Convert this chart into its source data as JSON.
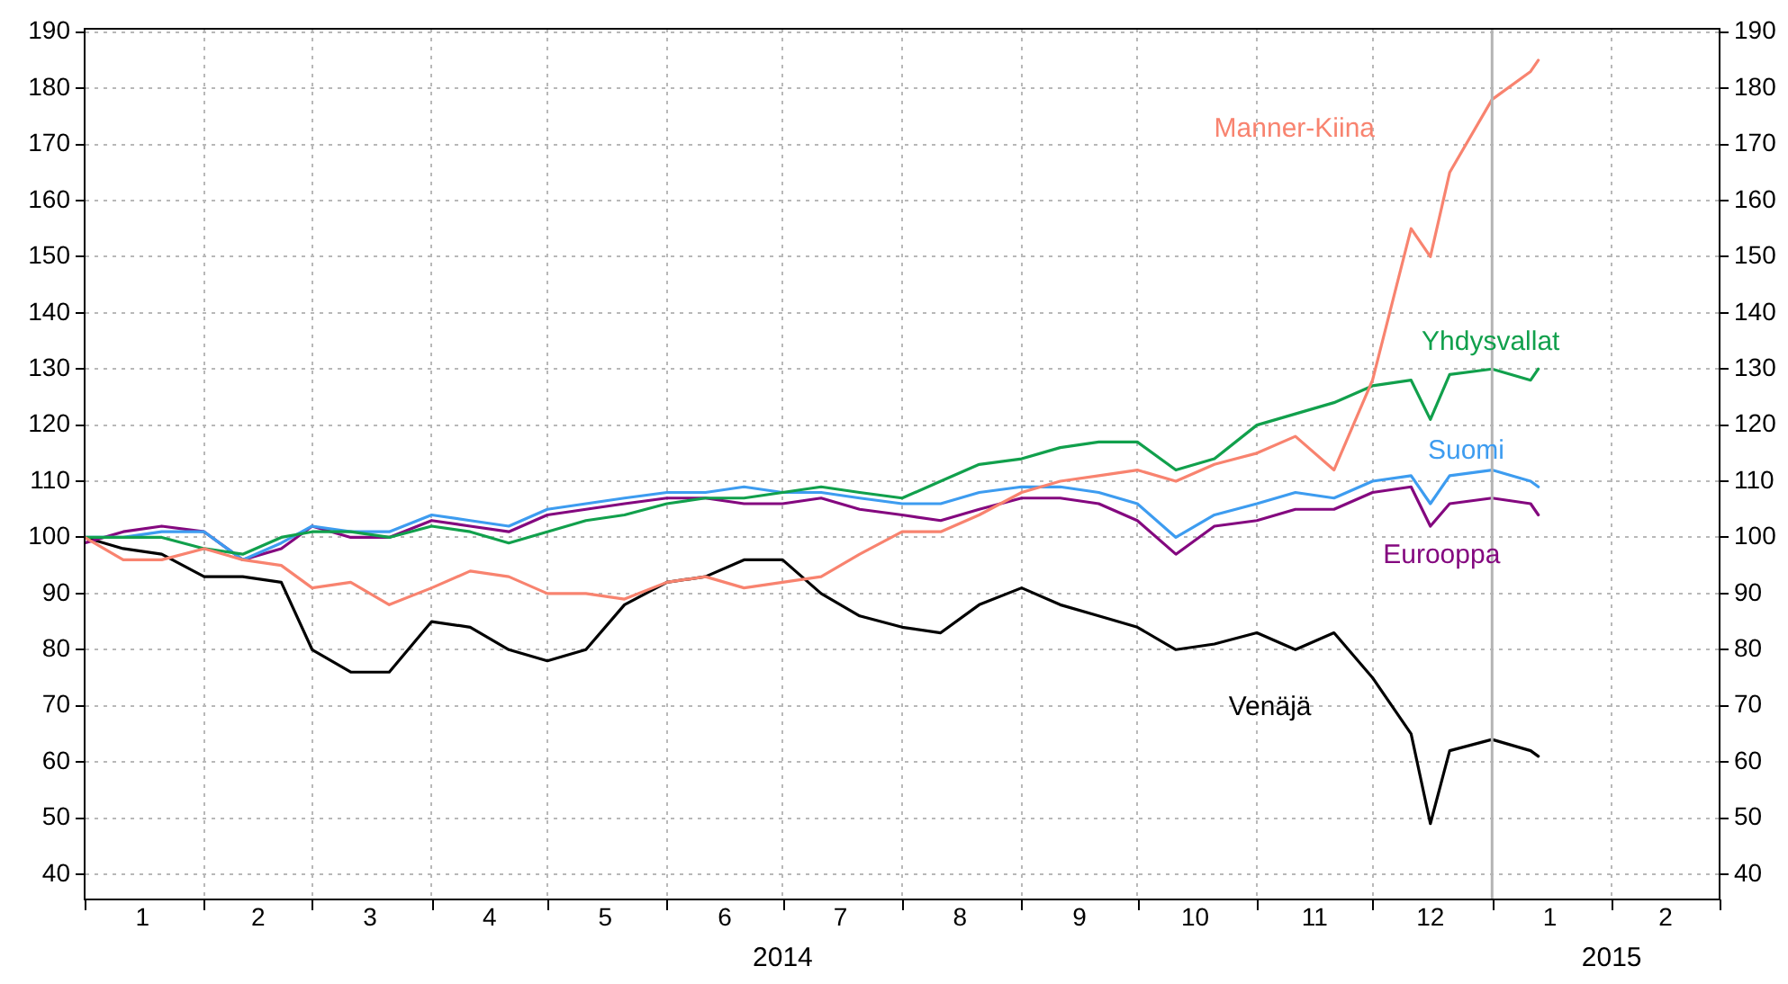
{
  "chart_data": {
    "type": "line",
    "x": [
      "2014-01-01",
      "2014-01-11",
      "2014-01-21",
      "2014-02-01",
      "2014-02-11",
      "2014-02-21",
      "2014-03-01",
      "2014-03-11",
      "2014-03-21",
      "2014-04-01",
      "2014-04-11",
      "2014-04-21",
      "2014-05-01",
      "2014-05-11",
      "2014-05-21",
      "2014-06-01",
      "2014-06-11",
      "2014-06-21",
      "2014-07-01",
      "2014-07-11",
      "2014-07-21",
      "2014-08-01",
      "2014-08-11",
      "2014-08-21",
      "2014-09-01",
      "2014-09-11",
      "2014-09-21",
      "2014-10-01",
      "2014-10-11",
      "2014-10-21",
      "2014-11-01",
      "2014-11-11",
      "2014-11-21",
      "2014-12-01",
      "2014-12-11",
      "2014-12-16",
      "2014-12-21",
      "2015-01-01",
      "2015-01-11",
      "2015-01-13"
    ],
    "series": [
      {
        "name": "Manner-Kiina",
        "color": "#f8836f",
        "values": [
          100,
          96,
          96,
          98,
          96,
          95,
          91,
          92,
          88,
          91,
          94,
          93,
          90,
          90,
          89,
          92,
          93,
          91,
          92,
          93,
          97,
          101,
          101,
          104,
          108,
          110,
          111,
          112,
          110,
          113,
          115,
          118,
          112,
          128,
          155,
          150,
          165,
          178,
          183,
          185
        ]
      },
      {
        "name": "Yhdysvallat",
        "color": "#11a04c",
        "values": [
          100,
          100,
          100,
          98,
          97,
          100,
          101,
          101,
          100,
          102,
          101,
          99,
          101,
          103,
          104,
          106,
          107,
          107,
          108,
          109,
          108,
          107,
          110,
          113,
          114,
          116,
          117,
          117,
          112,
          114,
          120,
          122,
          124,
          127,
          128,
          121,
          129,
          130,
          128,
          130
        ]
      },
      {
        "name": "Suomi",
        "color": "#3d9cf0",
        "values": [
          100,
          100,
          101,
          101,
          96,
          99,
          102,
          101,
          101,
          104,
          103,
          102,
          105,
          106,
          107,
          108,
          108,
          109,
          108,
          108,
          107,
          106,
          106,
          108,
          109,
          109,
          108,
          106,
          100,
          104,
          106,
          108,
          107,
          110,
          111,
          106,
          111,
          112,
          110,
          109
        ]
      },
      {
        "name": "Eurooppa",
        "color": "#84087f",
        "values": [
          99,
          101,
          102,
          101,
          96,
          98,
          102,
          100,
          100,
          103,
          102,
          101,
          104,
          105,
          106,
          107,
          107,
          106,
          106,
          107,
          105,
          104,
          103,
          105,
          107,
          107,
          106,
          103,
          97,
          102,
          103,
          105,
          105,
          108,
          109,
          102,
          106,
          107,
          106,
          104
        ]
      },
      {
        "name": "Venäjä",
        "color": "#000000",
        "values": [
          100,
          98,
          97,
          93,
          93,
          92,
          80,
          76,
          76,
          85,
          84,
          80,
          78,
          80,
          88,
          92,
          93,
          96,
          96,
          90,
          86,
          84,
          83,
          88,
          91,
          88,
          86,
          84,
          80,
          81,
          83,
          80,
          83,
          75,
          65,
          49,
          62,
          64,
          62,
          61
        ]
      }
    ],
    "xlim": [
      "2014-01-01",
      "2015-03-01"
    ],
    "xticks": [
      {
        "value": "2014-01-01",
        "label": null
      },
      {
        "value": "2014-02-01",
        "label": null
      },
      {
        "value": "2014-03-01",
        "label": null
      },
      {
        "value": "2014-04-01",
        "label": null
      },
      {
        "value": "2014-05-01",
        "label": null
      },
      {
        "value": "2014-06-01",
        "label": null
      },
      {
        "value": "2014-07-01",
        "label": null
      },
      {
        "value": "2014-08-01",
        "label": null
      },
      {
        "value": "2014-09-01",
        "label": null
      },
      {
        "value": "2014-10-01",
        "label": null
      },
      {
        "value": "2014-11-01",
        "label": null
      },
      {
        "value": "2014-12-01",
        "label": null
      },
      {
        "value": "2015-01-01",
        "label": null
      },
      {
        "value": "2015-02-01",
        "label": null
      },
      {
        "value": "2015-03-01",
        "label": null
      },
      {
        "value": "2014-01-16",
        "label": "1"
      },
      {
        "value": "2014-02-15",
        "label": "2"
      },
      {
        "value": "2014-03-16",
        "label": "3"
      },
      {
        "value": "2014-04-16",
        "label": "4"
      },
      {
        "value": "2014-05-16",
        "label": "5"
      },
      {
        "value": "2014-06-16",
        "label": "6"
      },
      {
        "value": "2014-07-16",
        "label": "7"
      },
      {
        "value": "2014-08-16",
        "label": "8"
      },
      {
        "value": "2014-09-16",
        "label": "9"
      },
      {
        "value": "2014-10-16",
        "label": "10"
      },
      {
        "value": "2014-11-16",
        "label": "11"
      },
      {
        "value": "2014-12-16",
        "label": "12"
      },
      {
        "value": "2015-01-16",
        "label": "1"
      },
      {
        "value": "2015-02-15",
        "label": "2"
      }
    ],
    "ylim": [
      35.5,
      190.6
    ],
    "yticks": [
      40,
      50,
      60,
      70,
      80,
      90,
      100,
      110,
      120,
      130,
      140,
      150,
      160,
      170,
      180,
      190
    ],
    "y2lim": [
      35.5,
      190.6
    ],
    "y2ticks": [
      40,
      50,
      60,
      70,
      80,
      90,
      100,
      110,
      120,
      130,
      140,
      150,
      160,
      170,
      180,
      190
    ],
    "ref_lines": [
      {
        "axis": "x",
        "value": "2015-01-01",
        "color": "#b4b4b4"
      }
    ],
    "annotations": [
      "2014",
      "2015"
    ],
    "grid": true,
    "legend": false,
    "marker": "none",
    "line_style": "solid"
  }
}
